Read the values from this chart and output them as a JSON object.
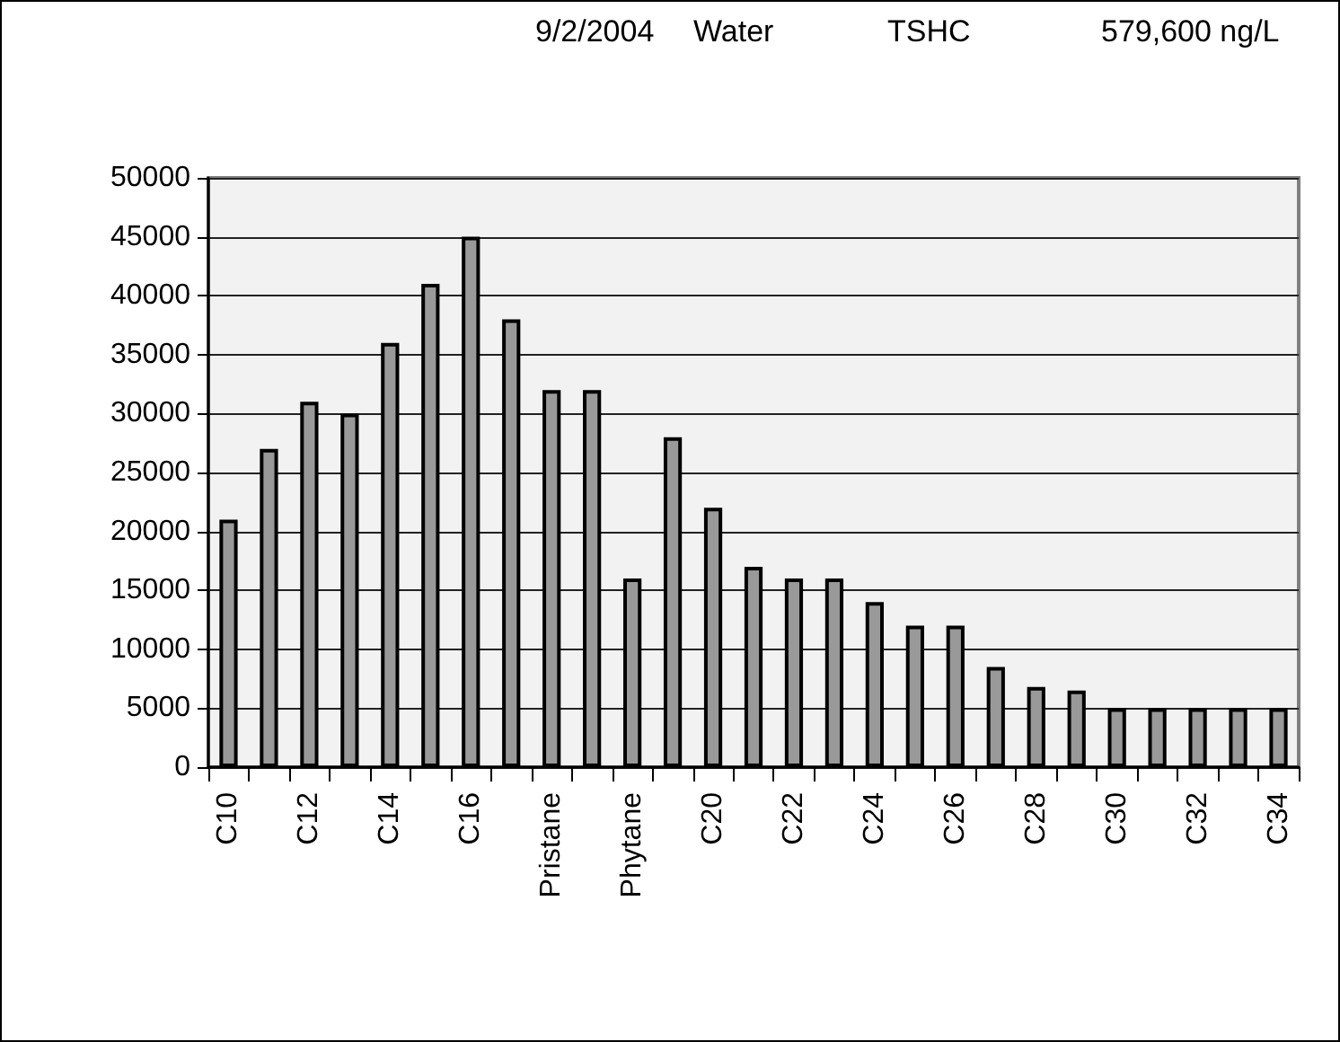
{
  "chart_data": {
    "type": "bar",
    "annotations": [
      "9/2/2004",
      "Water",
      "TSHC",
      "579,600 ng/L"
    ],
    "categories": [
      "C10",
      null,
      "C12",
      null,
      "C14",
      null,
      "C16",
      null,
      "Pristane",
      null,
      "Phytane",
      null,
      "C20",
      null,
      "C22",
      null,
      "C24",
      null,
      "C26",
      null,
      "C28",
      null,
      "C30",
      null,
      "C32",
      null,
      "C34"
    ],
    "values": [
      21000,
      27000,
      31000,
      30000,
      36000,
      41000,
      45000,
      38000,
      32000,
      32000,
      16000,
      28000,
      22000,
      17000,
      16000,
      16000,
      14000,
      12000,
      12000,
      8500,
      6800,
      6500,
      5000,
      5000,
      5000,
      5000,
      5000
    ],
    "color": "#999999",
    "ylim": [
      0,
      50000
    ],
    "yticks": [
      0,
      5000,
      10000,
      15000,
      20000,
      25000,
      30000,
      35000,
      40000,
      45000,
      50000
    ],
    "grid": "y"
  }
}
